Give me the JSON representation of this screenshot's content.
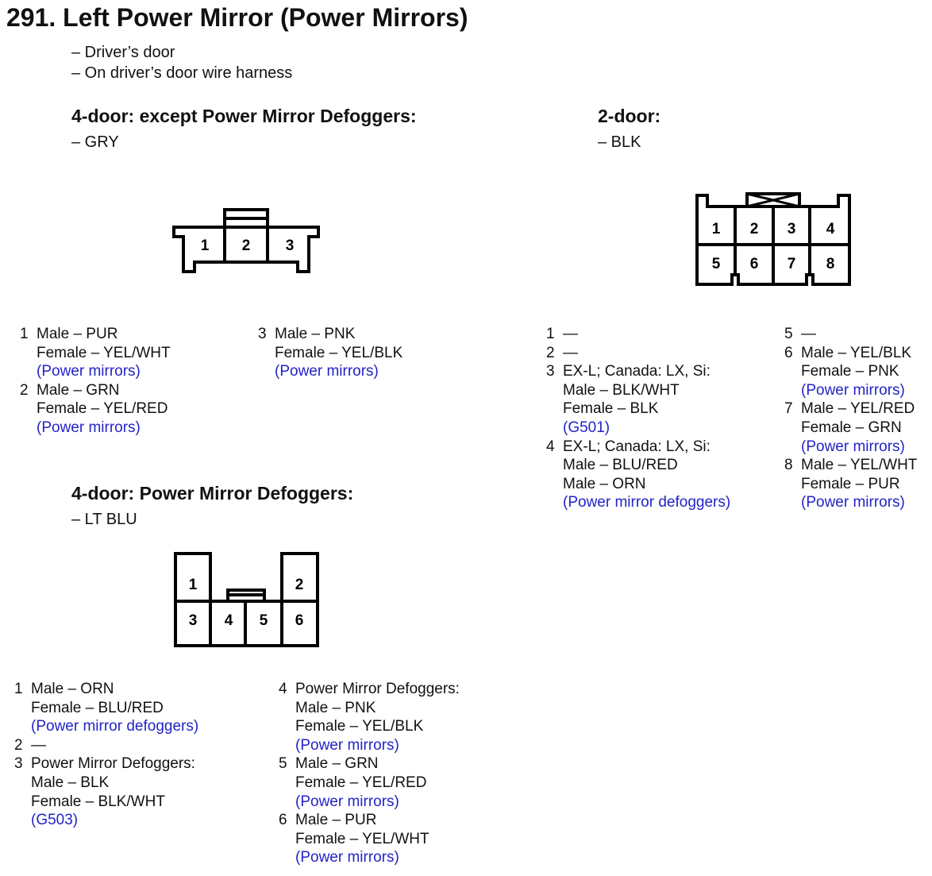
{
  "title": "291. Left Power Mirror (Power Mirrors)",
  "notes": [
    "– Driver’s door",
    "– On driver’s door wire harness"
  ],
  "connector_a": {
    "heading": "4-door: except Power Mirror Defoggers:",
    "color": "– GRY",
    "pin_labels": [
      "1",
      "2",
      "3"
    ],
    "columns": [
      [
        {
          "num": "1",
          "lines": [
            {
              "t": "Male – PUR"
            },
            {
              "t": "Female – YEL/WHT"
            },
            {
              "t": "(Power mirrors)",
              "ref": true
            }
          ]
        },
        {
          "num": "2",
          "lines": [
            {
              "t": "Male – GRN"
            },
            {
              "t": "Female – YEL/RED"
            },
            {
              "t": "(Power mirrors)",
              "ref": true
            }
          ]
        }
      ],
      [
        {
          "num": "3",
          "lines": [
            {
              "t": "Male – PNK"
            },
            {
              "t": "Female – YEL/BLK"
            },
            {
              "t": "(Power mirrors)",
              "ref": true
            }
          ]
        }
      ]
    ]
  },
  "connector_b": {
    "heading": "4-door: Power Mirror Defoggers:",
    "color": "– LT BLU",
    "pin_labels": [
      "1",
      "2",
      "3",
      "4",
      "5",
      "6"
    ],
    "columns": [
      [
        {
          "num": "1",
          "lines": [
            {
              "t": "Male – ORN"
            },
            {
              "t": "Female – BLU/RED"
            },
            {
              "t": "(Power mirror defoggers)",
              "ref": true
            }
          ]
        },
        {
          "num": "2",
          "lines": [
            {
              "t": "—"
            }
          ]
        },
        {
          "num": "3",
          "lines": [
            {
              "t": "Power Mirror Defoggers:"
            },
            {
              "t": "Male – BLK"
            },
            {
              "t": "Female – BLK/WHT"
            },
            {
              "t": "(G503)",
              "ref": true
            }
          ]
        }
      ],
      [
        {
          "num": "4",
          "lines": [
            {
              "t": "Power Mirror Defoggers:"
            },
            {
              "t": "Male – PNK"
            },
            {
              "t": "Female – YEL/BLK"
            },
            {
              "t": "(Power mirrors)",
              "ref": true
            }
          ]
        },
        {
          "num": "5",
          "lines": [
            {
              "t": "Male – GRN"
            },
            {
              "t": "Female – YEL/RED"
            },
            {
              "t": "(Power mirrors)",
              "ref": true
            }
          ]
        },
        {
          "num": "6",
          "lines": [
            {
              "t": "Male – PUR"
            },
            {
              "t": "Female – YEL/WHT"
            },
            {
              "t": "(Power mirrors)",
              "ref": true
            }
          ]
        }
      ]
    ]
  },
  "connector_c": {
    "heading": "2-door:",
    "color": "– BLK",
    "pin_labels": [
      "1",
      "2",
      "3",
      "4",
      "5",
      "6",
      "7",
      "8"
    ],
    "columns": [
      [
        {
          "num": "1",
          "lines": [
            {
              "t": "—"
            }
          ]
        },
        {
          "num": "2",
          "lines": [
            {
              "t": "—"
            }
          ]
        },
        {
          "num": "3",
          "lines": [
            {
              "t": "EX-L; Canada: LX, Si:"
            },
            {
              "t": "Male – BLK/WHT"
            },
            {
              "t": "Female – BLK"
            },
            {
              "t": "(G501)",
              "ref": true
            }
          ]
        },
        {
          "num": "4",
          "lines": [
            {
              "t": "EX-L; Canada: LX, Si:"
            },
            {
              "t": "Male – BLU/RED"
            },
            {
              "t": "Male – ORN"
            },
            {
              "t": "(Power mirror defoggers)",
              "ref": true
            }
          ]
        }
      ],
      [
        {
          "num": "5",
          "lines": [
            {
              "t": "—"
            }
          ]
        },
        {
          "num": "6",
          "lines": [
            {
              "t": "Male – YEL/BLK"
            },
            {
              "t": "Female – PNK"
            },
            {
              "t": "(Power mirrors)",
              "ref": true
            }
          ]
        },
        {
          "num": "7",
          "lines": [
            {
              "t": "Male – YEL/RED"
            },
            {
              "t": "Female – GRN"
            },
            {
              "t": "(Power mirrors)",
              "ref": true
            }
          ]
        },
        {
          "num": "8",
          "lines": [
            {
              "t": "Male – YEL/WHT"
            },
            {
              "t": "Female – PUR"
            },
            {
              "t": "(Power mirrors)",
              "ref": true
            }
          ]
        }
      ]
    ]
  },
  "colors": {
    "reference_text": "#2323c8"
  }
}
